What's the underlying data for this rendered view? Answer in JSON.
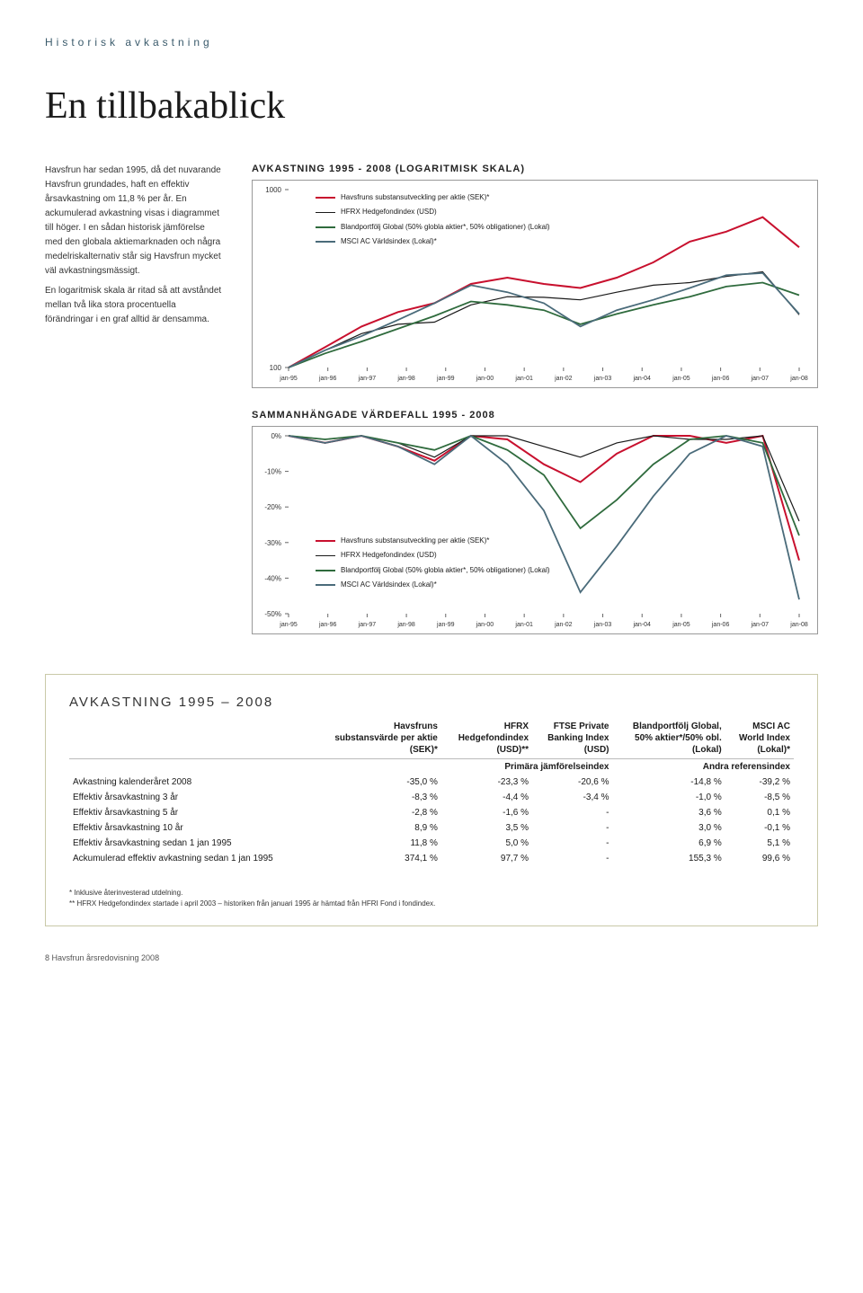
{
  "section_label": "Historisk avkastning",
  "title": "En tillbakablick",
  "side_text": {
    "p1": "Havsfrun har sedan 1995, då det nuvarande Havsfrun grundades, haft en effektiv årsavkastning om 11,8 % per år. En ackumulerad avkastning visas i diagrammet till höger. I en sådan historisk jämförelse med den globala aktiemarknaden och några medelriskalternativ står sig Havsfrun mycket väl avkastningsmässigt.",
    "p2": "En logaritmisk skala är ritad så att avståndet mellan två lika stora procentuella förändringar i en graf alltid är densamma."
  },
  "chart1": {
    "title": "AVKASTNING 1995 - 2008 (LOGARITMISK SKALA)",
    "type": "line",
    "y_type": "log",
    "ylim": [
      100,
      1000
    ],
    "y_ticks": [
      100,
      1000
    ],
    "y_labels": [
      "100",
      "1000"
    ],
    "x_labels": [
      "jan-95",
      "jan-96",
      "jan-97",
      "jan-98",
      "jan-99",
      "jan-00",
      "jan-01",
      "jan-02",
      "jan-03",
      "jan-04",
      "jan-05",
      "jan-06",
      "jan-07",
      "jan-08"
    ],
    "x_count": 14,
    "background_color": "#ffffff",
    "border_color": "#999999",
    "series": [
      {
        "name": "Havsfruns substansutveckling per aktie (SEK)*",
        "color": "#c8102e",
        "width": 2,
        "values": [
          100,
          130,
          170,
          205,
          230,
          295,
          320,
          295,
          280,
          320,
          390,
          510,
          580,
          700,
          474
        ]
      },
      {
        "name": "HFRX Hedgefondindex (USD)",
        "color": "#1a1a1a",
        "width": 1.2,
        "values": [
          100,
          125,
          155,
          175,
          180,
          225,
          250,
          248,
          240,
          265,
          290,
          300,
          325,
          345,
          198
        ]
      },
      {
        "name": "Blandportfölj Global (50% globla aktier*, 50% obligationer) (Lokal)",
        "color": "#2f6b3d",
        "width": 1.8,
        "values": [
          100,
          120,
          140,
          165,
          195,
          235,
          225,
          210,
          175,
          200,
          225,
          250,
          285,
          300,
          255
        ]
      },
      {
        "name": "MSCI AC Världsindex (Lokal)*",
        "color": "#4a6b7a",
        "width": 1.8,
        "values": [
          100,
          125,
          150,
          185,
          230,
          290,
          265,
          230,
          170,
          210,
          240,
          280,
          330,
          340,
          200
        ]
      }
    ]
  },
  "chart2": {
    "title": "SAMMANHÄNGADE VÄRDEFALL 1995 - 2008",
    "type": "area-drawdown",
    "ylim": [
      -50,
      0
    ],
    "y_ticks": [
      0,
      -10,
      -20,
      -30,
      -40,
      -50
    ],
    "y_labels": [
      "0%",
      "-10%",
      "-20%",
      "-30%",
      "-40%",
      "-50%"
    ],
    "x_labels": [
      "jan-95",
      "jan-96",
      "jan-97",
      "jan-98",
      "jan-99",
      "jan-00",
      "jan-01",
      "jan-02",
      "jan-03",
      "jan-04",
      "jan-05",
      "jan-06",
      "jan-07",
      "jan-08"
    ],
    "x_count": 14,
    "background_color": "#ffffff",
    "border_color": "#999999",
    "legend_pos": "middle",
    "series": [
      {
        "name": "Havsfruns substansutveckling per aktie (SEK)*",
        "color": "#c8102e",
        "width": 2,
        "values": [
          0,
          -2,
          0,
          -3,
          -7,
          0,
          -1,
          -8,
          -13,
          -5,
          0,
          0,
          -2,
          0,
          -35
        ]
      },
      {
        "name": "HFRX Hedgefondindex (USD)",
        "color": "#1a1a1a",
        "width": 1.2,
        "values": [
          0,
          -1,
          0,
          -2,
          -6,
          0,
          0,
          -3,
          -6,
          -2,
          0,
          -1,
          -1,
          0,
          -24
        ]
      },
      {
        "name": "Blandportfölj Global (50% globla aktier*, 50% obligationer) (Lokal)",
        "color": "#2f6b3d",
        "width": 1.8,
        "values": [
          0,
          -1,
          0,
          -2,
          -4,
          0,
          -4,
          -11,
          -26,
          -18,
          -8,
          -1,
          0,
          -2,
          -28
        ]
      },
      {
        "name": "MSCI AC Världsindex (Lokal)*",
        "color": "#4a6b7a",
        "width": 1.8,
        "values": [
          0,
          -2,
          0,
          -3,
          -8,
          0,
          -8,
          -21,
          -44,
          -31,
          -17,
          -5,
          0,
          -3,
          -46
        ]
      }
    ]
  },
  "table": {
    "title": "AVKASTNING 1995 – 2008",
    "group_heads": [
      "",
      "",
      "Primära jämförelseindex",
      "Andra referensindex"
    ],
    "columns": [
      "",
      "Havsfruns substansvärde per aktie (SEK)*",
      "HFRX Hedgefondindex (USD)**",
      "FTSE Private Banking Index (USD)",
      "Blandportfölj Global, 50% aktier*/50% obl. (Lokal)",
      "MSCI AC World Index (Lokal)*"
    ],
    "rows": [
      [
        "Avkastning kalenderåret 2008",
        "-35,0 %",
        "-23,3 %",
        "-20,6 %",
        "-14,8 %",
        "-39,2 %"
      ],
      [
        "Effektiv årsavkastning 3 år",
        "-8,3 %",
        "-4,4 %",
        "-3,4 %",
        "-1,0 %",
        "-8,5 %"
      ],
      [
        "Effektiv årsavkastning 5 år",
        "-2,8 %",
        "-1,6 %",
        "-",
        "3,6 %",
        "0,1 %"
      ],
      [
        "Effektiv årsavkastning 10 år",
        "8,9 %",
        "3,5 %",
        "-",
        "3,0 %",
        "-0,1 %"
      ],
      [
        "Effektiv årsavkastning sedan 1 jan 1995",
        "11,8 %",
        "5,0 %",
        "-",
        "6,9 %",
        "5,1 %"
      ],
      [
        "Ackumulerad effektiv avkastning sedan 1 jan 1995",
        "374,1 %",
        "97,7 %",
        "-",
        "155,3 %",
        "99,6 %"
      ]
    ],
    "footnotes": [
      "* Inklusive återinvesterad utdelning.",
      "** HFRX Hedgefondindex startade i april 2003 – historiken från januari 1995 är hämtad från HFRI Fond i fondindex."
    ]
  },
  "footer": "8  Havsfrun årsredovisning 2008"
}
